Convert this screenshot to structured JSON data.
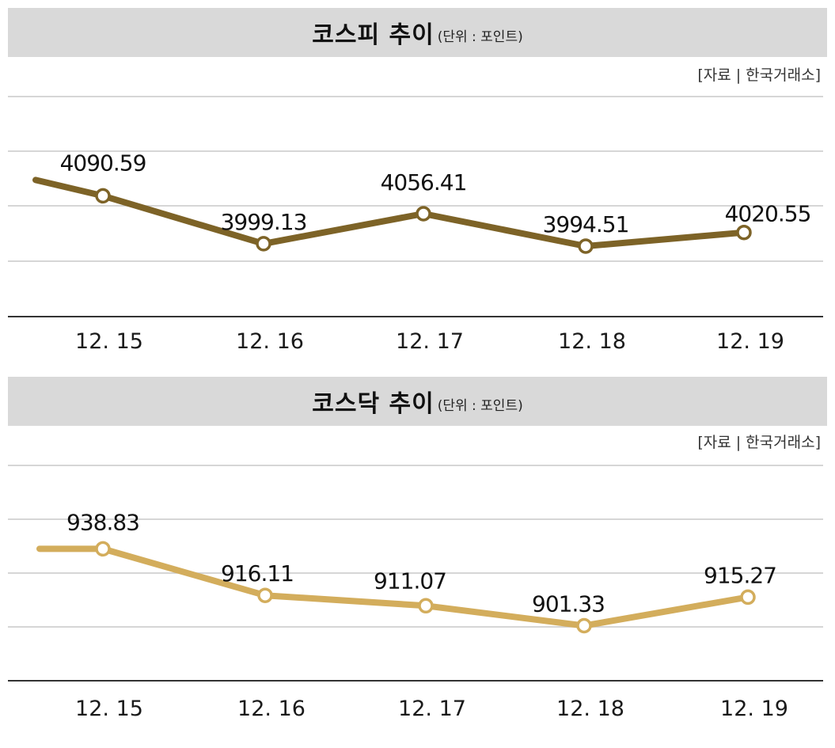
{
  "chart_data": [
    {
      "type": "line",
      "title": "코스피 추이",
      "unit_note": "(단위 : 포인트)",
      "source": "[자료 | 한국거래소]",
      "categories": [
        "12. 15",
        "12. 16",
        "12. 17",
        "12. 18",
        "12. 19"
      ],
      "values": [
        4090.59,
        3999.13,
        4056.41,
        3994.51,
        4020.55
      ],
      "value_labels": [
        "4090.59",
        "3999.13",
        "4056.41",
        "3994.51",
        "4020.55"
      ],
      "line_color": "#7d6327",
      "ylim": [
        3860,
        4280
      ],
      "grid": true,
      "legend": "none"
    },
    {
      "type": "line",
      "title": "코스닥 추이",
      "unit_note": "(단위 : 포인트)",
      "source": "[자료 | 한국거래소]",
      "categories": [
        "12. 15",
        "12. 16",
        "12. 17",
        "12. 18",
        "12. 19"
      ],
      "values": [
        938.83,
        916.11,
        911.07,
        901.33,
        915.27
      ],
      "value_labels": [
        "938.83",
        "916.11",
        "911.07",
        "901.33",
        "915.27"
      ],
      "line_color": "#d3ad5c",
      "ylim": [
        874.5,
        979.5
      ],
      "grid": true,
      "legend": "none"
    }
  ]
}
